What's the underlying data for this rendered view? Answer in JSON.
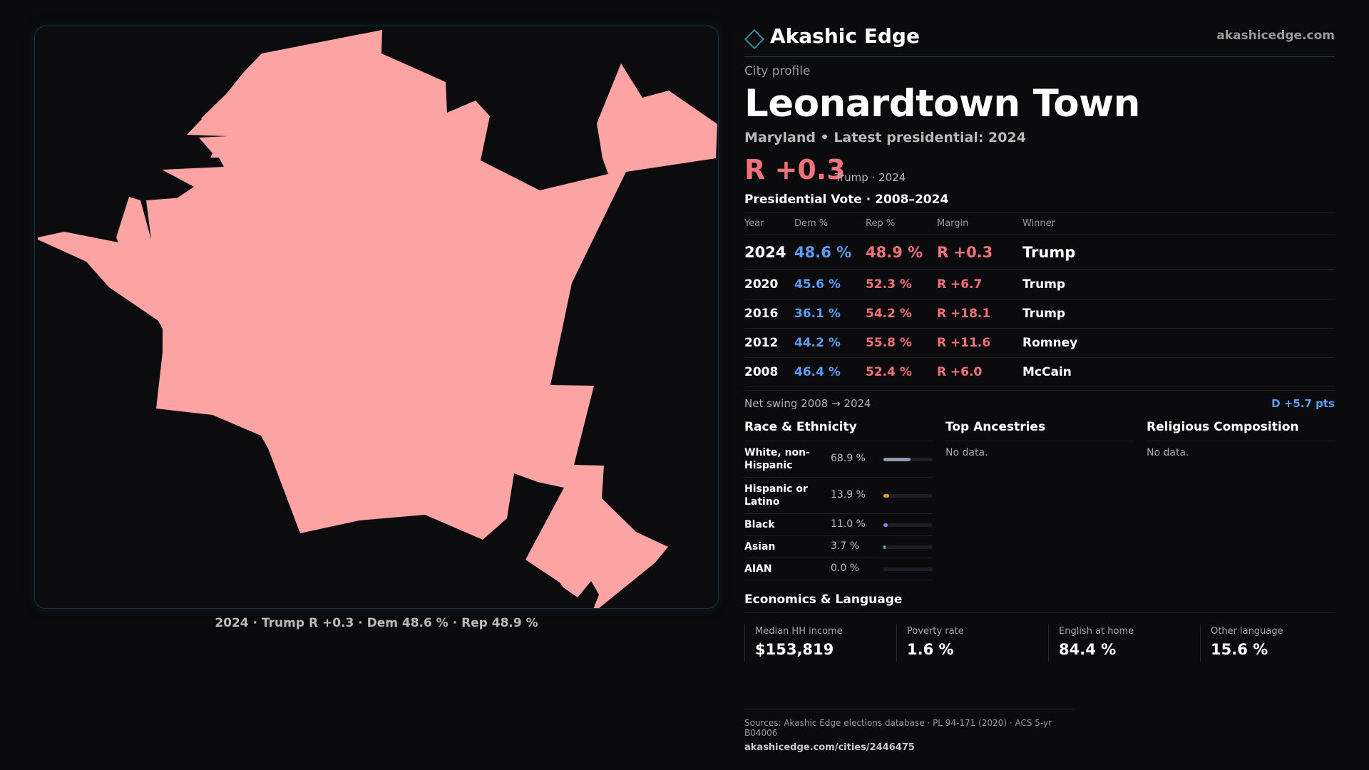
{
  "map": {
    "fill_color": "#fca3a3",
    "caption": "2024 · Trump R +0.3 · Dem 48.6 % · Rep 48.9 %"
  },
  "brand": {
    "name": "Akashic Edge",
    "url": "akashicedge.com",
    "accent_color": "#2b8fa3"
  },
  "profile": {
    "eyebrow": "City profile",
    "title": "Leonardtown Town",
    "subtitle": "Maryland • Latest presidential: 2024",
    "headline_margin": "R +0.3",
    "headline_winner": "Trump · 2024"
  },
  "presidential": {
    "title": "Presidential Vote · 2008–2024",
    "columns": [
      "Year",
      "Dem %",
      "Rep %",
      "Margin",
      "Winner"
    ],
    "rows": [
      {
        "year": "2024",
        "dem": "48.6 %",
        "rep": "48.9 %",
        "margin": "R +0.3",
        "winner": "Trump"
      },
      {
        "year": "2020",
        "dem": "45.6 %",
        "rep": "52.3 %",
        "margin": "R +6.7",
        "winner": "Trump"
      },
      {
        "year": "2016",
        "dem": "36.1 %",
        "rep": "54.2 %",
        "margin": "R +18.1",
        "winner": "Trump"
      },
      {
        "year": "2012",
        "dem": "44.2 %",
        "rep": "55.8 %",
        "margin": "R +11.6",
        "winner": "Romney"
      },
      {
        "year": "2008",
        "dem": "46.4 %",
        "rep": "52.4 %",
        "margin": "R +6.0",
        "winner": "McCain"
      }
    ],
    "dem_color": "#5b9df2",
    "rep_color": "#f1727a"
  },
  "swing": {
    "label": "Net swing 2008 → 2024",
    "value": "D +5.7 pts"
  },
  "race": {
    "title": "Race & Ethnicity",
    "rows": [
      {
        "label": "White, non-Hispanic",
        "pct": "68.9 %",
        "value": 68.9,
        "color": "#8e98ad"
      },
      {
        "label": "Hispanic or Latino",
        "pct": "13.9 %",
        "value": 13.9,
        "color": "#e59a2f"
      },
      {
        "label": "Black",
        "pct": "11.0 %",
        "value": 11.0,
        "color": "#9a82e8"
      },
      {
        "label": "Asian",
        "pct": "3.7 %",
        "value": 3.7,
        "color": "#3fc3a6"
      },
      {
        "label": "AIAN",
        "pct": "0.0 %",
        "value": 0.0,
        "color": "#c77dd6"
      }
    ]
  },
  "ancestries": {
    "title": "Top Ancestries",
    "empty": "No data."
  },
  "religion": {
    "title": "Religious Composition",
    "empty": "No data."
  },
  "economics": {
    "title": "Economics & Language",
    "cards": [
      {
        "label": "Median HH income",
        "value": "$153,819"
      },
      {
        "label": "Poverty rate",
        "value": "1.6 %"
      },
      {
        "label": "English at home",
        "value": "84.4 %"
      },
      {
        "label": "Other language",
        "value": "15.6 %"
      }
    ]
  },
  "footer": {
    "sources": "Sources: Akashic Edge elections database · PL 94-171 (2020) · ACS 5-yr B04006",
    "url": "akashicedge.com/cities/2446475"
  }
}
